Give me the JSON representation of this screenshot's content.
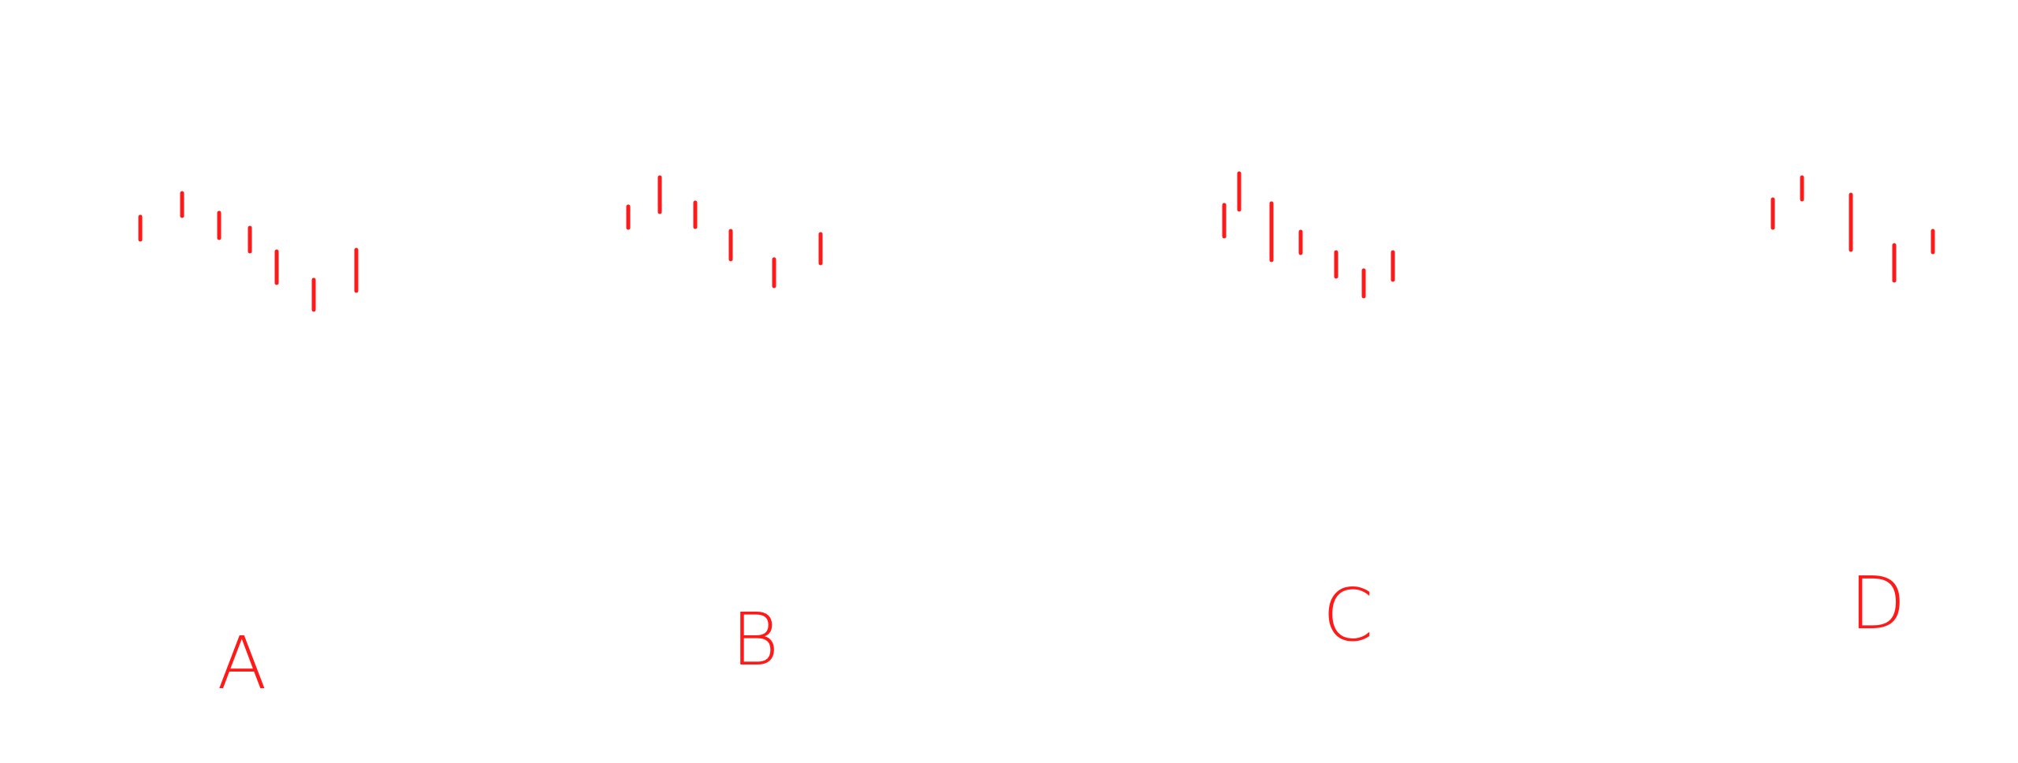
{
  "stroke_color": "#ff1a1a",
  "panels": [
    {
      "label": "A",
      "strokes": [
        {
          "top": 30,
          "bottom": 59
        },
        {
          "top": 0,
          "bottom": 29
        },
        {
          "top": 25,
          "bottom": 57
        },
        {
          "top": 44,
          "bottom": 74
        },
        {
          "top": 74,
          "bottom": 114
        },
        {
          "top": 110,
          "bottom": 148
        },
        {
          "top": 72,
          "bottom": 124
        }
      ]
    },
    {
      "label": "B",
      "strokes": [
        {
          "top": 37,
          "bottom": 64
        },
        {
          "top": 0,
          "bottom": 44
        },
        {
          "top": 32,
          "bottom": 63
        },
        {
          "top": 68,
          "bottom": 104
        },
        {
          "top": 104,
          "bottom": 138
        },
        {
          "top": 72,
          "bottom": 109
        }
      ]
    },
    {
      "label": "C",
      "strokes": [
        {
          "top": 40,
          "bottom": 80
        },
        {
          "top": 0,
          "bottom": 46
        },
        {
          "top": 38,
          "bottom": 110
        },
        {
          "top": 74,
          "bottom": 101
        },
        {
          "top": 100,
          "bottom": 131
        },
        {
          "top": 123,
          "bottom": 156
        },
        {
          "top": 100,
          "bottom": 135
        }
      ]
    },
    {
      "label": "D",
      "strokes": [
        {
          "top": 28,
          "bottom": 64
        },
        {
          "top": 0,
          "bottom": 28
        },
        {
          "top": 22,
          "bottom": 92
        },
        {
          "top": 86,
          "bottom": 131
        },
        {
          "top": 68,
          "bottom": 95
        }
      ]
    }
  ]
}
